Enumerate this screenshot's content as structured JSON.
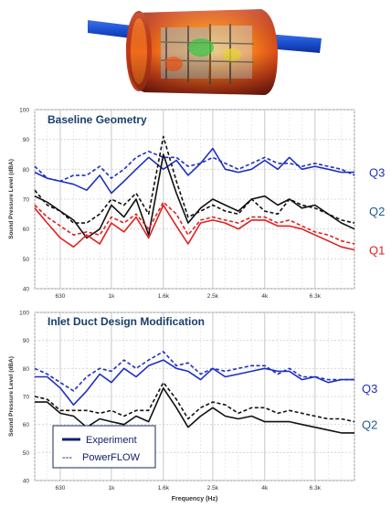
{
  "chart_data": [
    {
      "type": "line",
      "title": "Baseline Geometry",
      "xlabel": "",
      "ylabel": "Sound Pressure Level (dBA)",
      "x_scale": "log",
      "xlim": [
        500,
        9000
      ],
      "ylim": [
        40,
        100
      ],
      "yticks": [
        40,
        50,
        60,
        70,
        80,
        90,
        100
      ],
      "xtick_labels": [
        "630",
        "1k",
        "1.6k",
        "2.5k",
        "4k",
        "6.3k"
      ],
      "xtick_values": [
        630,
        1000,
        1600,
        2500,
        4000,
        6300
      ],
      "grid": true,
      "x": [
        500,
        560,
        630,
        710,
        800,
        900,
        1000,
        1120,
        1250,
        1400,
        1600,
        1800,
        2000,
        2240,
        2500,
        2800,
        3150,
        3550,
        4000,
        4500,
        5000,
        5600,
        6300,
        7100,
        8000,
        9000
      ],
      "series": [
        {
          "name": "Q3",
          "style": "solid",
          "color": "#1f2fbf",
          "values": [
            79,
            77,
            76,
            75,
            73,
            78,
            72,
            76,
            80,
            84,
            80,
            83,
            78,
            82,
            87,
            80,
            79,
            80,
            83,
            80,
            84,
            80,
            81,
            80,
            79,
            79
          ]
        },
        {
          "name": "Q3",
          "style": "dashed",
          "color": "#1f2fbf",
          "values": [
            81,
            77,
            76,
            78,
            78,
            81,
            77,
            80,
            84,
            86,
            84,
            84,
            81,
            82,
            84,
            82,
            80,
            82,
            84,
            82,
            82,
            81,
            82,
            81,
            80,
            78
          ]
        },
        {
          "name": "Q2",
          "style": "solid",
          "color": "#111111",
          "values": [
            71,
            69,
            66,
            63,
            57,
            60,
            68,
            64,
            70,
            58,
            85,
            72,
            62,
            67,
            70,
            68,
            66,
            70,
            71,
            68,
            70,
            67,
            68,
            65,
            62,
            60
          ]
        },
        {
          "name": "Q2",
          "style": "dashed",
          "color": "#111111",
          "values": [
            73,
            68,
            66,
            62,
            62,
            65,
            70,
            68,
            72,
            65,
            91,
            76,
            64,
            66,
            68,
            66,
            65,
            70,
            66,
            65,
            70,
            68,
            67,
            65,
            63,
            62
          ]
        },
        {
          "name": "Q1",
          "style": "solid",
          "color": "#e02020",
          "values": [
            67,
            62,
            57,
            54,
            58,
            55,
            62,
            59,
            64,
            57,
            68,
            61,
            55,
            62,
            63,
            62,
            60,
            63,
            63,
            61,
            61,
            60,
            58,
            56,
            54,
            53
          ]
        },
        {
          "name": "Q1",
          "style": "dashed",
          "color": "#e02020",
          "values": [
            68,
            64,
            61,
            58,
            59,
            58,
            64,
            62,
            65,
            60,
            69,
            65,
            58,
            63,
            64,
            63,
            62,
            64,
            64,
            62,
            63,
            61,
            59,
            58,
            56,
            55
          ]
        }
      ],
      "series_labels": [
        {
          "text": "Q3",
          "color": "#1f2fbf",
          "y": 79
        },
        {
          "text": "Q2",
          "color": "#1f5a8c",
          "y": 66
        },
        {
          "text": "Q1",
          "color": "#e02020",
          "y": 53
        }
      ]
    },
    {
      "type": "line",
      "title": "Inlet Duct Design Modification",
      "xlabel": "Frequency (Hz)",
      "ylabel": "Sound Pressure Level (dBA)",
      "x_scale": "log",
      "xlim": [
        500,
        9000
      ],
      "ylim": [
        40,
        100
      ],
      "yticks": [
        40,
        50,
        60,
        70,
        80,
        90,
        100
      ],
      "xtick_labels": [
        "630",
        "1k",
        "1.6k",
        "2.5k",
        "4k",
        "6.3k"
      ],
      "xtick_values": [
        630,
        1000,
        1600,
        2500,
        4000,
        6300
      ],
      "grid": true,
      "x": [
        500,
        560,
        630,
        710,
        800,
        900,
        1000,
        1120,
        1250,
        1400,
        1600,
        1800,
        2000,
        2240,
        2500,
        2800,
        3150,
        3550,
        4000,
        4500,
        5000,
        5600,
        6300,
        7100,
        8000,
        9000
      ],
      "series": [
        {
          "name": "Q3",
          "style": "solid",
          "color": "#1f2fbf",
          "values": [
            77,
            77,
            73,
            67,
            72,
            78,
            75,
            80,
            77,
            81,
            83,
            80,
            79,
            76,
            80,
            77,
            78,
            79,
            80,
            79,
            79,
            76,
            77,
            75,
            76,
            76
          ]
        },
        {
          "name": "Q3",
          "style": "dashed",
          "color": "#1f2fbf",
          "values": [
            80,
            78,
            75,
            72,
            77,
            80,
            79,
            83,
            80,
            83,
            86,
            81,
            82,
            78,
            80,
            79,
            80,
            81,
            81,
            78,
            80,
            77,
            77,
            76,
            76,
            76
          ]
        },
        {
          "name": "Q2",
          "style": "solid",
          "color": "#111111",
          "values": [
            68,
            68,
            64,
            63,
            59,
            62,
            61,
            60,
            63,
            61,
            73,
            66,
            59,
            63,
            66,
            63,
            62,
            63,
            61,
            61,
            61,
            60,
            59,
            58,
            57,
            57
          ]
        },
        {
          "name": "Q2",
          "style": "dashed",
          "color": "#111111",
          "values": [
            70,
            69,
            65,
            65,
            65,
            64,
            65,
            63,
            65,
            65,
            75,
            69,
            62,
            66,
            68,
            67,
            64,
            66,
            66,
            64,
            65,
            64,
            63,
            62,
            62,
            61
          ]
        }
      ],
      "series_labels": [
        {
          "text": "Q3",
          "color": "#1f2fbf",
          "y": 73
        },
        {
          "text": "Q2",
          "color": "#1f5a8c",
          "y": 60
        }
      ],
      "legend": {
        "placement": "bottom-left",
        "entries": [
          {
            "label": "Experiment",
            "style": "solid",
            "color": "#14216b"
          },
          {
            "label": "PowerFLOW",
            "style": "dashed",
            "color": "#14216b",
            "prefix": "---"
          }
        ]
      }
    }
  ]
}
